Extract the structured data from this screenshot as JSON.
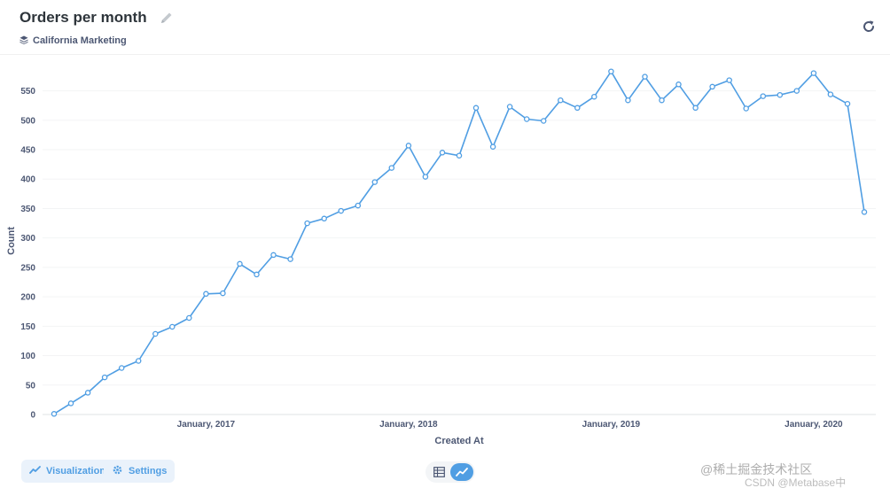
{
  "header": {
    "title": "Orders per month",
    "collection": "California Marketing"
  },
  "footer": {
    "visualization_label": "Visualization",
    "settings_label": "Settings"
  },
  "watermark": {
    "line1": "@稀土掘金技术社区",
    "line2": "CSDN @Metabase中"
  },
  "colors": {
    "accent": "#509ee3",
    "line": "#509ee3",
    "axis_text": "#4c5773",
    "grid": "#f0f0f0"
  },
  "chart_data": {
    "type": "line",
    "title": "",
    "xlabel": "Created At",
    "ylabel": "Count",
    "ylim": [
      0,
      590
    ],
    "yticks": [
      0,
      50,
      100,
      150,
      200,
      250,
      300,
      350,
      400,
      450,
      500,
      550
    ],
    "x_tick_labels": [
      "January, 2017",
      "January, 2018",
      "January, 2019",
      "January, 2020"
    ],
    "x_tick_dates": [
      "2017-01",
      "2018-01",
      "2019-01",
      "2020-01"
    ],
    "x": [
      "2016-04",
      "2016-05",
      "2016-06",
      "2016-07",
      "2016-08",
      "2016-09",
      "2016-10",
      "2016-11",
      "2016-12",
      "2017-01",
      "2017-02",
      "2017-03",
      "2017-04",
      "2017-05",
      "2017-06",
      "2017-07",
      "2017-08",
      "2017-09",
      "2017-10",
      "2017-11",
      "2017-12",
      "2018-01",
      "2018-02",
      "2018-03",
      "2018-04",
      "2018-05",
      "2018-06",
      "2018-07",
      "2018-08",
      "2018-09",
      "2018-10",
      "2018-11",
      "2018-12",
      "2019-01",
      "2019-02",
      "2019-03",
      "2019-04",
      "2019-05",
      "2019-06",
      "2019-07",
      "2019-08",
      "2019-09",
      "2019-10",
      "2019-11",
      "2019-12",
      "2020-01",
      "2020-02",
      "2020-03",
      "2020-04"
    ],
    "series": [
      {
        "values": [
          1,
          19,
          37,
          63,
          79,
          91,
          137,
          149,
          164,
          205,
          206,
          256,
          238,
          271,
          264,
          325,
          333,
          346,
          355,
          395,
          419,
          457,
          404,
          445,
          440,
          521,
          455,
          523,
          502,
          499,
          534,
          521,
          540,
          583,
          534,
          574,
          534,
          561,
          521,
          557,
          568,
          520,
          541,
          543,
          550,
          580,
          544,
          528,
          344
        ]
      }
    ],
    "grid": "horizontal"
  }
}
